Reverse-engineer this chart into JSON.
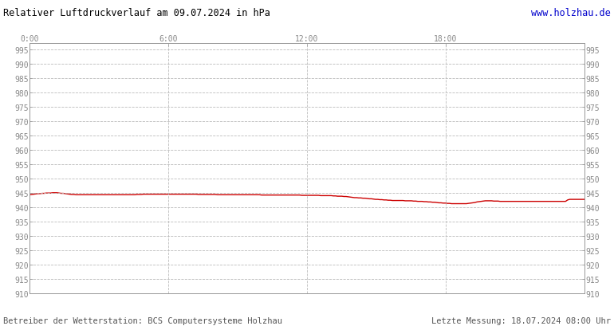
{
  "title": "Relativer Luftdruckverlauf am 09.07.2024 in hPa",
  "url_text": "www.holzhau.de",
  "footer_left": "Betreiber der Wetterstation: BCS Computersysteme Holzhau",
  "footer_right": "Letzte Messung: 18.07.2024 08:00 Uhr",
  "bg_color": "#ffffff",
  "plot_bg_color": "#ffffff",
  "grid_color": "#bbbbbb",
  "line_color": "#cc0000",
  "tick_label_color": "#888888",
  "title_color": "#000000",
  "url_color": "#0000cc",
  "footer_color": "#555555",
  "border_color": "#999999",
  "xlim": [
    0,
    287
  ],
  "ylim": [
    910,
    997
  ],
  "yticks": [
    910,
    915,
    920,
    925,
    930,
    935,
    940,
    945,
    950,
    955,
    960,
    965,
    970,
    975,
    980,
    985,
    990,
    995
  ],
  "xtick_positions": [
    0,
    71.75,
    143.5,
    215.25,
    287
  ],
  "xtick_labels": [
    "0:00",
    "6:00",
    "12:00",
    "18:00",
    ""
  ],
  "pressure_data": [
    944.3,
    944.4,
    944.5,
    944.6,
    944.7,
    944.7,
    944.8,
    944.8,
    944.9,
    944.9,
    944.9,
    945.0,
    945.0,
    945.0,
    944.9,
    944.8,
    944.8,
    944.7,
    944.6,
    944.5,
    944.4,
    944.4,
    944.3,
    944.3,
    944.3,
    944.3,
    944.3,
    944.3,
    944.3,
    944.3,
    944.3,
    944.3,
    944.3,
    944.3,
    944.3,
    944.3,
    944.3,
    944.3,
    944.3,
    944.3,
    944.3,
    944.3,
    944.3,
    944.3,
    944.3,
    944.3,
    944.3,
    944.3,
    944.3,
    944.3,
    944.3,
    944.4,
    944.4,
    944.4,
    944.5,
    944.5,
    944.5,
    944.5,
    944.5,
    944.5,
    944.5,
    944.5,
    944.5,
    944.5,
    944.5,
    944.5,
    944.5,
    944.5,
    944.5,
    944.5,
    944.5,
    944.5,
    944.5,
    944.5,
    944.5,
    944.5,
    944.5,
    944.5,
    944.5,
    944.5,
    944.4,
    944.4,
    944.4,
    944.4,
    944.4,
    944.4,
    944.4,
    944.4,
    944.4,
    944.3,
    944.3,
    944.3,
    944.3,
    944.3,
    944.3,
    944.3,
    944.3,
    944.3,
    944.3,
    944.3,
    944.3,
    944.3,
    944.3,
    944.3,
    944.3,
    944.3,
    944.3,
    944.3,
    944.3,
    944.3,
    944.2,
    944.2,
    944.2,
    944.2,
    944.2,
    944.2,
    944.2,
    944.2,
    944.2,
    944.2,
    944.2,
    944.2,
    944.2,
    944.2,
    944.2,
    944.2,
    944.2,
    944.2,
    944.2,
    944.1,
    944.1,
    944.1,
    944.1,
    944.1,
    944.1,
    944.1,
    944.1,
    944.1,
    944.0,
    944.0,
    944.0,
    944.0,
    944.0,
    944.0,
    943.9,
    943.9,
    943.8,
    943.8,
    943.8,
    943.7,
    943.7,
    943.6,
    943.5,
    943.4,
    943.3,
    943.3,
    943.2,
    943.2,
    943.1,
    943.1,
    943.0,
    942.9,
    942.9,
    942.8,
    942.7,
    942.7,
    942.6,
    942.6,
    942.5,
    942.5,
    942.4,
    942.4,
    942.3,
    942.3,
    942.3,
    942.3,
    942.3,
    942.3,
    942.2,
    942.2,
    942.2,
    942.2,
    942.1,
    942.1,
    942.0,
    942.0,
    942.0,
    941.9,
    941.9,
    941.8,
    941.8,
    941.7,
    941.7,
    941.6,
    941.5,
    941.5,
    941.4,
    941.4,
    941.3,
    941.3,
    941.2,
    941.2,
    941.2,
    941.2,
    941.2,
    941.2,
    941.2,
    941.2,
    941.3,
    941.4,
    941.5,
    941.6,
    941.8,
    941.9,
    942.0,
    942.1,
    942.2,
    942.2,
    942.2,
    942.2,
    942.1,
    942.1,
    942.1,
    942.0,
    942.0,
    942.0,
    942.0,
    942.0,
    942.0,
    942.0,
    942.0,
    942.0,
    942.0,
    942.0,
    942.0,
    942.0,
    942.0,
    942.0,
    942.0,
    942.0,
    942.0,
    942.0,
    942.0,
    942.0,
    942.0,
    942.0,
    942.0,
    942.0,
    942.0,
    942.0,
    942.0,
    942.0,
    942.0,
    942.0,
    942.0,
    942.5,
    942.7,
    942.7,
    942.7,
    942.7,
    942.7,
    942.7,
    942.7,
    942.7
  ]
}
